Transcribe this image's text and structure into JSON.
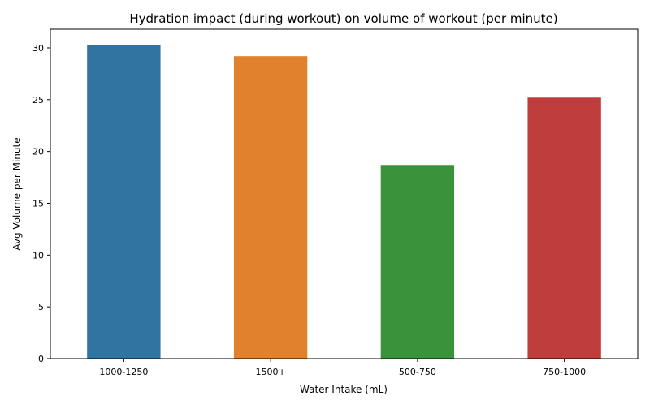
{
  "chart_data": {
    "type": "bar",
    "title": "Hydration impact (during workout) on volume of workout (per minute)",
    "xlabel": "Water Intake (mL)",
    "ylabel": "Avg Volume per Minute",
    "categories": [
      "1000-1250",
      "1500+",
      "500-750",
      "750-1000"
    ],
    "values": [
      30.3,
      29.2,
      18.7,
      25.2
    ],
    "colors": [
      "#3274a1",
      "#e1812c",
      "#3a923a",
      "#c03d3e"
    ],
    "ylim": [
      0,
      31.8
    ],
    "yticks": [
      0,
      5,
      10,
      15,
      20,
      25,
      30
    ],
    "grid": false,
    "legend": "none"
  }
}
